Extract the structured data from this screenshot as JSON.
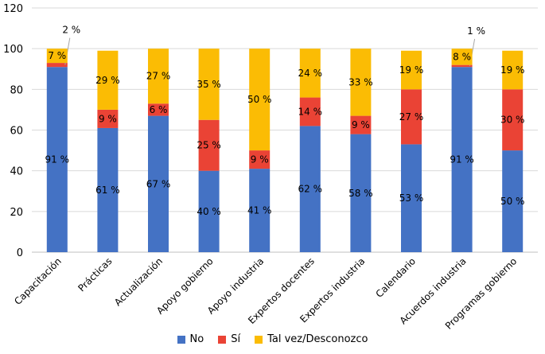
{
  "chart_data": {
    "type": "bar",
    "stacked": true,
    "categories": [
      "Capacitación",
      "Prácticas",
      "Actualización",
      "Apoyo gobierno",
      "Apoyo industria",
      "Expertos docentes",
      "Expertos industria",
      "Calendario",
      "Acuerdos industria",
      "Programas gobierno"
    ],
    "series": [
      {
        "name": "No",
        "color": "#4472c4",
        "values": [
          91,
          61,
          67,
          40,
          41,
          62,
          58,
          53,
          91,
          50
        ],
        "labels": [
          "91 %",
          "61 %",
          "67 %",
          "40 %",
          "41 %",
          "62 %",
          "58 %",
          "53 %",
          "91 %",
          "50 %"
        ]
      },
      {
        "name": "Sí",
        "color": "#ea4335",
        "values": [
          2,
          9,
          6,
          25,
          9,
          14,
          9,
          27,
          1,
          30
        ],
        "labels": [
          "2 %",
          "9 %",
          "6 %",
          "25 %",
          "9 %",
          "14 %",
          "9 %",
          "27 %",
          "1 %",
          "30 %"
        ]
      },
      {
        "name": "Tal vez/Desconozco",
        "color": "#fbbc04",
        "values": [
          7,
          29,
          27,
          35,
          50,
          24,
          33,
          19,
          8,
          19
        ],
        "labels": [
          "7 %",
          "29 %",
          "27 %",
          "35 %",
          "50 %",
          "24 %",
          "33 %",
          "19 %",
          "8 %",
          "19 %"
        ]
      }
    ],
    "ylim": [
      0,
      120
    ],
    "yticks": [
      0,
      20,
      40,
      60,
      80,
      100,
      120
    ],
    "xlabel": "",
    "ylabel": "",
    "grid": true,
    "legend_position": "bottom",
    "callouts": [
      {
        "category_index": 0,
        "series_index": 1
      },
      {
        "category_index": 8,
        "series_index": 1
      }
    ]
  }
}
